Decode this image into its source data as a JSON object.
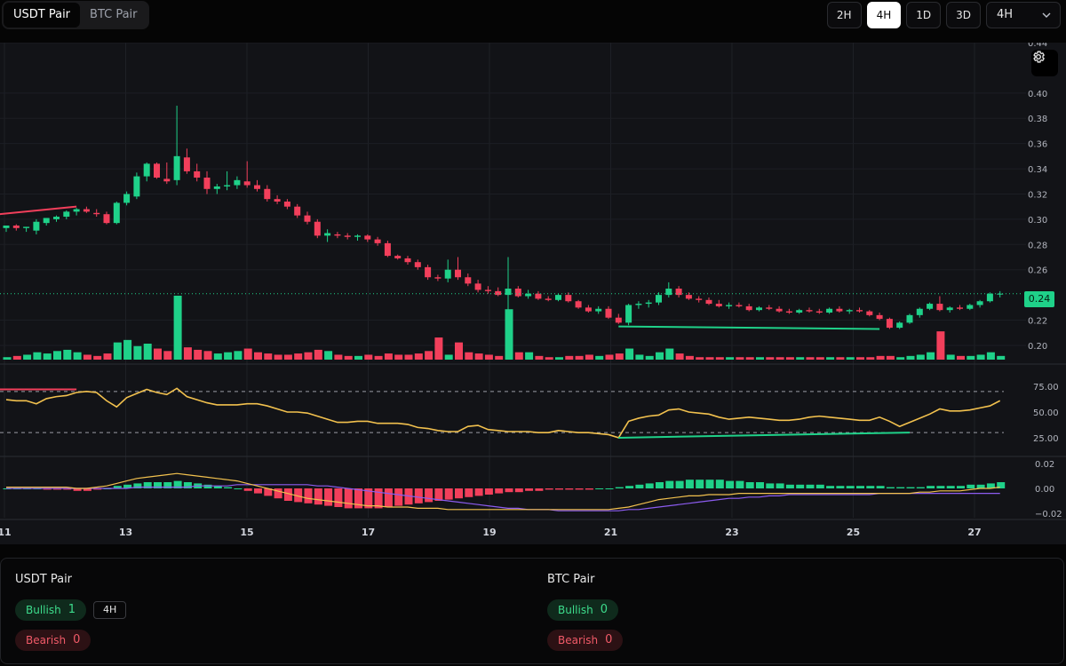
{
  "pair_tabs": [
    {
      "label": "USDT Pair",
      "active": true
    },
    {
      "label": "BTC Pair",
      "active": false
    }
  ],
  "timeframes": {
    "buttons": [
      {
        "label": "2H",
        "active": false
      },
      {
        "label": "4H",
        "active": true
      },
      {
        "label": "1D",
        "active": false
      },
      {
        "label": "3D",
        "active": false
      }
    ],
    "select_value": "4H"
  },
  "chart": {
    "current_price_label": "0.24",
    "settings_icon": "gear-icon",
    "colors": {
      "up": "#1fd189",
      "down": "#f23f5b",
      "rsi": "#f2c14e",
      "macd_signal": "#8c5cf0",
      "divergence": "#1fd189",
      "bear_divergence": "#f23f5b"
    }
  },
  "chart_data": {
    "type": "candlestick",
    "x_tick_labels": [
      "11",
      "13",
      "15",
      "17",
      "19",
      "21",
      "23",
      "25",
      "27"
    ],
    "price_axis_ticks": [
      "0.44",
      "0.40",
      "0.38",
      "0.36",
      "0.34",
      "0.32",
      "0.30",
      "0.28",
      "0.26",
      "0.22",
      "0.20"
    ],
    "price_ylim": [
      0.188,
      0.44
    ],
    "rsi_axis_ticks": [
      "75.00",
      "50.00",
      "25.00"
    ],
    "rsi_ylim": [
      12,
      88
    ],
    "rsi_levels": [
      70,
      30
    ],
    "macd_axis_ticks": [
      "0.02",
      "0.00",
      "−0.02"
    ],
    "macd_ylim": [
      -0.023,
      0.023
    ],
    "candles": [
      [
        0.293,
        0.295,
        0.29,
        0.295
      ],
      [
        0.295,
        0.296,
        0.291,
        0.293
      ],
      [
        0.293,
        0.294,
        0.29,
        0.294
      ],
      [
        0.291,
        0.3,
        0.288,
        0.298
      ],
      [
        0.297,
        0.301,
        0.295,
        0.301
      ],
      [
        0.3,
        0.303,
        0.298,
        0.302
      ],
      [
        0.302,
        0.307,
        0.3,
        0.306
      ],
      [
        0.306,
        0.309,
        0.303,
        0.308
      ],
      [
        0.308,
        0.31,
        0.305,
        0.306
      ],
      [
        0.305,
        0.308,
        0.302,
        0.304
      ],
      [
        0.304,
        0.306,
        0.296,
        0.297
      ],
      [
        0.297,
        0.314,
        0.296,
        0.313
      ],
      [
        0.313,
        0.322,
        0.311,
        0.32
      ],
      [
        0.318,
        0.337,
        0.316,
        0.334
      ],
      [
        0.334,
        0.345,
        0.33,
        0.344
      ],
      [
        0.344,
        0.345,
        0.332,
        0.333
      ],
      [
        0.332,
        0.345,
        0.328,
        0.33
      ],
      [
        0.331,
        0.39,
        0.327,
        0.35
      ],
      [
        0.349,
        0.356,
        0.336,
        0.338
      ],
      [
        0.338,
        0.344,
        0.33,
        0.333
      ],
      [
        0.333,
        0.338,
        0.32,
        0.324
      ],
      [
        0.324,
        0.328,
        0.32,
        0.326
      ],
      [
        0.326,
        0.338,
        0.323,
        0.327
      ],
      [
        0.327,
        0.334,
        0.324,
        0.331
      ],
      [
        0.33,
        0.346,
        0.325,
        0.327
      ],
      [
        0.327,
        0.331,
        0.322,
        0.324
      ],
      [
        0.324,
        0.327,
        0.314,
        0.316
      ],
      [
        0.316,
        0.319,
        0.312,
        0.314
      ],
      [
        0.314,
        0.316,
        0.308,
        0.31
      ],
      [
        0.31,
        0.312,
        0.301,
        0.303
      ],
      [
        0.303,
        0.306,
        0.296,
        0.298
      ],
      [
        0.298,
        0.3,
        0.285,
        0.287
      ],
      [
        0.287,
        0.292,
        0.282,
        0.289
      ],
      [
        0.288,
        0.29,
        0.285,
        0.287
      ],
      [
        0.287,
        0.289,
        0.284,
        0.286
      ],
      [
        0.286,
        0.288,
        0.283,
        0.287
      ],
      [
        0.287,
        0.288,
        0.282,
        0.284
      ],
      [
        0.284,
        0.286,
        0.279,
        0.281
      ],
      [
        0.281,
        0.283,
        0.27,
        0.271
      ],
      [
        0.271,
        0.272,
        0.268,
        0.269
      ],
      [
        0.269,
        0.271,
        0.264,
        0.266
      ],
      [
        0.266,
        0.268,
        0.26,
        0.262
      ],
      [
        0.262,
        0.264,
        0.252,
        0.254
      ],
      [
        0.254,
        0.256,
        0.251,
        0.253
      ],
      [
        0.253,
        0.268,
        0.25,
        0.26
      ],
      [
        0.26,
        0.27,
        0.252,
        0.254
      ],
      [
        0.254,
        0.257,
        0.247,
        0.249
      ],
      [
        0.249,
        0.252,
        0.242,
        0.244
      ],
      [
        0.244,
        0.247,
        0.241,
        0.243
      ],
      [
        0.243,
        0.246,
        0.239,
        0.24
      ],
      [
        0.24,
        0.27,
        0.228,
        0.245
      ],
      [
        0.245,
        0.247,
        0.238,
        0.239
      ],
      [
        0.239,
        0.244,
        0.237,
        0.241
      ],
      [
        0.241,
        0.243,
        0.236,
        0.237
      ],
      [
        0.237,
        0.239,
        0.235,
        0.236
      ],
      [
        0.236,
        0.241,
        0.235,
        0.24
      ],
      [
        0.24,
        0.242,
        0.234,
        0.235
      ],
      [
        0.235,
        0.236,
        0.229,
        0.23
      ],
      [
        0.23,
        0.232,
        0.226,
        0.227
      ],
      [
        0.227,
        0.231,
        0.225,
        0.229
      ],
      [
        0.229,
        0.231,
        0.221,
        0.222
      ],
      [
        0.222,
        0.225,
        0.217,
        0.218
      ],
      [
        0.218,
        0.233,
        0.216,
        0.232
      ],
      [
        0.232,
        0.235,
        0.229,
        0.233
      ],
      [
        0.233,
        0.236,
        0.23,
        0.234
      ],
      [
        0.234,
        0.242,
        0.232,
        0.24
      ],
      [
        0.24,
        0.25,
        0.238,
        0.245
      ],
      [
        0.245,
        0.247,
        0.238,
        0.24
      ],
      [
        0.24,
        0.242,
        0.236,
        0.237
      ],
      [
        0.237,
        0.239,
        0.234,
        0.236
      ],
      [
        0.236,
        0.238,
        0.232,
        0.233
      ],
      [
        0.233,
        0.236,
        0.23,
        0.231
      ],
      [
        0.231,
        0.234,
        0.229,
        0.232
      ],
      [
        0.232,
        0.234,
        0.23,
        0.231
      ],
      [
        0.231,
        0.233,
        0.227,
        0.228
      ],
      [
        0.228,
        0.231,
        0.227,
        0.23
      ],
      [
        0.23,
        0.232,
        0.228,
        0.229
      ],
      [
        0.229,
        0.231,
        0.226,
        0.227
      ],
      [
        0.227,
        0.229,
        0.225,
        0.226
      ],
      [
        0.226,
        0.229,
        0.225,
        0.228
      ],
      [
        0.228,
        0.23,
        0.226,
        0.227
      ],
      [
        0.227,
        0.229,
        0.225,
        0.226
      ],
      [
        0.226,
        0.23,
        0.225,
        0.229
      ],
      [
        0.229,
        0.231,
        0.226,
        0.227
      ],
      [
        0.227,
        0.229,
        0.225,
        0.228
      ],
      [
        0.228,
        0.23,
        0.226,
        0.227
      ],
      [
        0.227,
        0.228,
        0.223,
        0.224
      ],
      [
        0.224,
        0.226,
        0.22,
        0.221
      ],
      [
        0.221,
        0.222,
        0.213,
        0.214
      ],
      [
        0.214,
        0.219,
        0.213,
        0.218
      ],
      [
        0.218,
        0.225,
        0.217,
        0.224
      ],
      [
        0.224,
        0.23,
        0.222,
        0.229
      ],
      [
        0.229,
        0.234,
        0.228,
        0.233
      ],
      [
        0.233,
        0.239,
        0.227,
        0.228
      ],
      [
        0.228,
        0.231,
        0.226,
        0.23
      ],
      [
        0.23,
        0.232,
        0.228,
        0.229
      ],
      [
        0.229,
        0.233,
        0.228,
        0.232
      ],
      [
        0.232,
        0.236,
        0.23,
        0.235
      ],
      [
        0.235,
        0.242,
        0.234,
        0.241
      ],
      [
        0.241,
        0.243,
        0.238,
        0.241
      ]
    ],
    "volume": [
      0.2,
      0.3,
      0.4,
      0.6,
      0.5,
      0.7,
      0.8,
      0.6,
      0.4,
      0.3,
      0.5,
      1.4,
      1.6,
      1.1,
      1.3,
      0.9,
      0.7,
      5.2,
      1.0,
      0.8,
      0.7,
      0.5,
      0.6,
      0.7,
      0.9,
      0.6,
      0.5,
      0.4,
      0.4,
      0.5,
      0.6,
      0.8,
      0.7,
      0.4,
      0.3,
      0.3,
      0.4,
      0.3,
      0.5,
      0.4,
      0.4,
      0.5,
      0.7,
      1.8,
      0.4,
      1.4,
      0.6,
      0.5,
      0.4,
      0.3,
      4.1,
      0.6,
      0.6,
      0.3,
      0.2,
      0.2,
      0.3,
      0.3,
      0.4,
      0.3,
      0.4,
      0.5,
      0.9,
      0.4,
      0.3,
      0.6,
      0.9,
      0.5,
      0.3,
      0.2,
      0.2,
      0.2,
      0.2,
      0.2,
      0.2,
      0.2,
      0.2,
      0.2,
      0.2,
      0.2,
      0.2,
      0.2,
      0.2,
      0.2,
      0.2,
      0.2,
      0.2,
      0.3,
      0.3,
      0.2,
      0.3,
      0.4,
      0.6,
      2.3,
      0.4,
      0.3,
      0.3,
      0.4,
      0.6,
      0.3
    ],
    "rsi": [
      62,
      61,
      61,
      58,
      63,
      65,
      66,
      69,
      70,
      69,
      61,
      55,
      64,
      68,
      72,
      69,
      67,
      73,
      65,
      62,
      59,
      57,
      57,
      57,
      58,
      58,
      56,
      53,
      50,
      50,
      49,
      46,
      43,
      40,
      40,
      41,
      41,
      39,
      39,
      39,
      38,
      35,
      34,
      32,
      31,
      31,
      36,
      37,
      33,
      32,
      31,
      31,
      31,
      30,
      30,
      32,
      31,
      30,
      30,
      29,
      28,
      25,
      41,
      44,
      46,
      47,
      52,
      53,
      50,
      49,
      48,
      45,
      43,
      44,
      45,
      44,
      43,
      42,
      42,
      43,
      45,
      46,
      45,
      44,
      43,
      42,
      42,
      45,
      41,
      36,
      40,
      44,
      48,
      53,
      51,
      51,
      52,
      54,
      56,
      61
    ],
    "macd_hist": [
      0.0,
      0.0,
      0.0,
      0.0,
      -0.001,
      -0.001,
      -0.001,
      -0.002,
      -0.002,
      -0.001,
      0.0,
      0.002,
      0.003,
      0.004,
      0.005,
      0.005,
      0.005,
      0.006,
      0.005,
      0.004,
      0.003,
      0.002,
      0.001,
      0.0,
      -0.002,
      -0.004,
      -0.006,
      -0.008,
      -0.01,
      -0.011,
      -0.012,
      -0.013,
      -0.014,
      -0.015,
      -0.016,
      -0.016,
      -0.016,
      -0.016,
      -0.015,
      -0.014,
      -0.013,
      -0.012,
      -0.011,
      -0.01,
      -0.009,
      -0.008,
      -0.007,
      -0.006,
      -0.005,
      -0.004,
      -0.003,
      -0.003,
      -0.002,
      -0.002,
      -0.001,
      -0.001,
      -0.001,
      -0.001,
      -0.001,
      0.0,
      0.0,
      0.001,
      0.002,
      0.003,
      0.004,
      0.005,
      0.006,
      0.006,
      0.007,
      0.007,
      0.007,
      0.007,
      0.006,
      0.006,
      0.005,
      0.005,
      0.004,
      0.004,
      0.003,
      0.003,
      0.003,
      0.003,
      0.002,
      0.002,
      0.002,
      0.002,
      0.002,
      0.002,
      0.001,
      0.001,
      0.001,
      0.001,
      0.002,
      0.002,
      0.002,
      0.002,
      0.003,
      0.003,
      0.004,
      0.005
    ],
    "macd_signal": [
      0.0,
      0.0,
      0.0,
      0.0,
      0.0,
      0.0,
      0.0,
      0.0,
      0.0,
      0.0,
      0.0,
      0.0,
      0.0,
      0.001,
      0.001,
      0.001,
      0.001,
      0.001,
      0.001,
      0.002,
      0.002,
      0.002,
      0.002,
      0.003,
      0.003,
      0.003,
      0.003,
      0.003,
      0.003,
      0.003,
      0.003,
      0.002,
      0.002,
      0.001,
      0.0,
      -0.001,
      -0.002,
      -0.003,
      -0.004,
      -0.005,
      -0.006,
      -0.007,
      -0.008,
      -0.009,
      -0.01,
      -0.011,
      -0.012,
      -0.013,
      -0.014,
      -0.015,
      -0.016,
      -0.016,
      -0.017,
      -0.017,
      -0.017,
      -0.018,
      -0.018,
      -0.018,
      -0.018,
      -0.018,
      -0.018,
      -0.018,
      -0.017,
      -0.017,
      -0.016,
      -0.015,
      -0.014,
      -0.013,
      -0.012,
      -0.011,
      -0.01,
      -0.009,
      -0.008,
      -0.008,
      -0.007,
      -0.007,
      -0.006,
      -0.006,
      -0.005,
      -0.005,
      -0.005,
      -0.005,
      -0.005,
      -0.005,
      -0.005,
      -0.005,
      -0.005,
      -0.004,
      -0.004,
      -0.004,
      -0.004,
      -0.004,
      -0.004,
      -0.004,
      -0.004,
      -0.004,
      -0.004,
      -0.004,
      -0.004,
      -0.004
    ],
    "macd_line": [
      0.001,
      0.001,
      0.001,
      0.001,
      0.001,
      0.001,
      0.001,
      0.0,
      0.0,
      0.001,
      0.002,
      0.004,
      0.006,
      0.008,
      0.009,
      0.01,
      0.011,
      0.012,
      0.011,
      0.01,
      0.009,
      0.008,
      0.007,
      0.006,
      0.004,
      0.002,
      0.0,
      -0.002,
      -0.004,
      -0.006,
      -0.008,
      -0.009,
      -0.01,
      -0.011,
      -0.012,
      -0.013,
      -0.014,
      -0.014,
      -0.015,
      -0.015,
      -0.015,
      -0.016,
      -0.016,
      -0.016,
      -0.017,
      -0.017,
      -0.017,
      -0.017,
      -0.017,
      -0.017,
      -0.017,
      -0.017,
      -0.017,
      -0.017,
      -0.017,
      -0.017,
      -0.017,
      -0.017,
      -0.017,
      -0.017,
      -0.017,
      -0.016,
      -0.015,
      -0.013,
      -0.011,
      -0.009,
      -0.008,
      -0.007,
      -0.006,
      -0.006,
      -0.005,
      -0.005,
      -0.005,
      -0.004,
      -0.004,
      -0.004,
      -0.004,
      -0.004,
      -0.004,
      -0.004,
      -0.004,
      -0.004,
      -0.004,
      -0.004,
      -0.004,
      -0.004,
      -0.004,
      -0.004,
      -0.004,
      -0.004,
      -0.004,
      -0.003,
      -0.003,
      -0.002,
      -0.002,
      -0.002,
      -0.001,
      0.0,
      0.0,
      0.001
    ],
    "bullish_divergence": {
      "price": [
        [
          61,
          0.215
        ],
        [
          87,
          0.213
        ]
      ],
      "rsi": [
        [
          61,
          25
        ],
        [
          90,
          30
        ]
      ]
    },
    "bearish_divergence": {
      "price": [
        [
          -2,
          0.303
        ],
        [
          7,
          0.31
        ]
      ],
      "rsi": [
        [
          -2,
          72
        ],
        [
          7,
          72
        ]
      ]
    }
  },
  "summary": {
    "usdt": {
      "title": "USDT Pair",
      "bullish_label": "Bullish",
      "bullish_count": "1",
      "bearish_label": "Bearish",
      "bearish_count": "0",
      "timeframe_chip": "4H"
    },
    "btc": {
      "title": "BTC Pair",
      "bullish_label": "Bullish",
      "bullish_count": "0",
      "bearish_label": "Bearish",
      "bearish_count": "0"
    }
  }
}
